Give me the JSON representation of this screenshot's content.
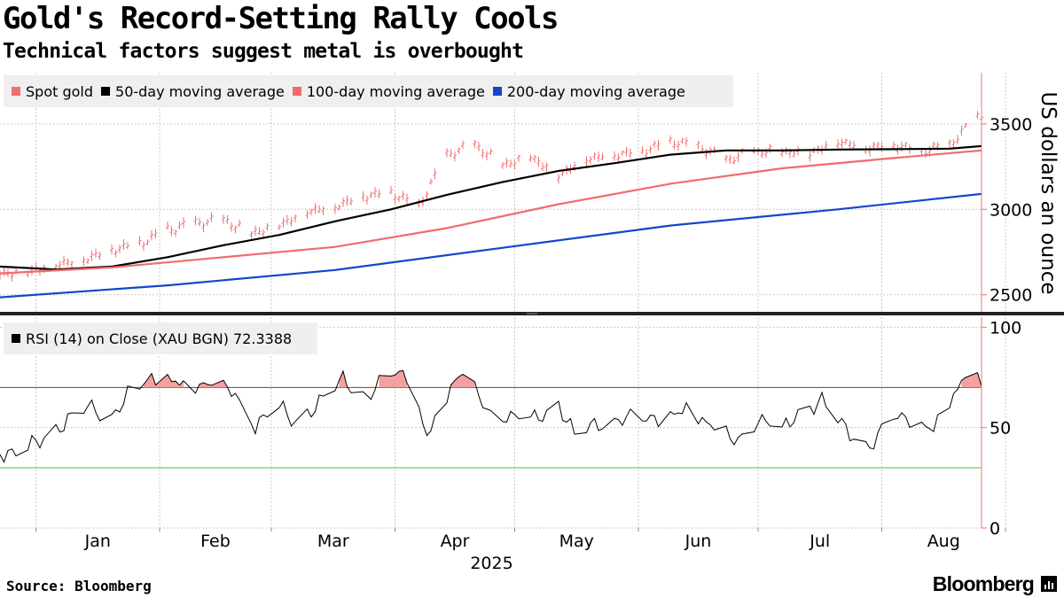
{
  "header": {
    "title": "Gold's Record-Setting Rally Cools",
    "subtitle": "Technical factors suggest metal is overbought"
  },
  "footer": {
    "source": "Source: Bloomberg",
    "brand": "Bloomberg"
  },
  "colors": {
    "spot_gold": "#f07070",
    "ma50": "#000000",
    "ma100": "#f26b6b",
    "ma200": "#1446c8",
    "rsi_line": "#000000",
    "rsi_overbought_line": "#b22222",
    "rsi_oversold_line": "#2ecc40",
    "rsi_fill": "#f4a0a0",
    "grid": "#c8c8c8",
    "axis": "#f07070"
  },
  "chart_data": [
    {
      "type": "line",
      "panel": "price",
      "ylabel": "US dollars an ounce",
      "ylim": [
        2400,
        3800
      ],
      "yticks": [
        2500,
        3000,
        3500
      ],
      "x_start": "2024-12-23",
      "x_end": "2025-08-26",
      "x_ticks": [
        "Jan",
        "Feb",
        "Mar",
        "Apr",
        "May",
        "Jun",
        "Jul",
        "Aug"
      ],
      "x_year_label": "2025",
      "legend_position": "top-left",
      "grid": true,
      "series": [
        {
          "name": "Spot gold",
          "style": "ohlc-bars",
          "dates": [
            "2024-12-23",
            "2024-12-30",
            "2025-01-06",
            "2025-01-13",
            "2025-01-20",
            "2025-01-27",
            "2025-02-03",
            "2025-02-10",
            "2025-02-17",
            "2025-02-24",
            "2025-03-03",
            "2025-03-10",
            "2025-03-17",
            "2025-03-24",
            "2025-03-31",
            "2025-04-07",
            "2025-04-14",
            "2025-04-21",
            "2025-04-28",
            "2025-05-05",
            "2025-05-12",
            "2025-05-19",
            "2025-05-26",
            "2025-06-02",
            "2025-06-09",
            "2025-06-16",
            "2025-06-23",
            "2025-06-30",
            "2025-07-07",
            "2025-07-14",
            "2025-07-21",
            "2025-07-28",
            "2025-08-04",
            "2025-08-11",
            "2025-08-18",
            "2025-08-25"
          ],
          "values": [
            2625,
            2640,
            2680,
            2710,
            2765,
            2800,
            2880,
            2920,
            2940,
            2860,
            2910,
            2990,
            3020,
            3080,
            3100,
            3020,
            3320,
            3380,
            3260,
            3310,
            3200,
            3300,
            3320,
            3340,
            3400,
            3370,
            3290,
            3340,
            3340,
            3330,
            3400,
            3360,
            3380,
            3340,
            3380,
            3540
          ]
        },
        {
          "name": "50-day moving average",
          "dates": [
            "2024-12-23",
            "2025-01-06",
            "2025-01-20",
            "2025-02-03",
            "2025-02-17",
            "2025-03-03",
            "2025-03-17",
            "2025-03-31",
            "2025-04-14",
            "2025-04-28",
            "2025-05-12",
            "2025-05-26",
            "2025-06-09",
            "2025-06-23",
            "2025-07-07",
            "2025-07-21",
            "2025-08-04",
            "2025-08-18",
            "2025-08-26"
          ],
          "values": [
            2665,
            2648,
            2665,
            2720,
            2790,
            2850,
            2930,
            3000,
            3085,
            3160,
            3225,
            3270,
            3320,
            3345,
            3345,
            3350,
            3352,
            3355,
            3370
          ]
        },
        {
          "name": "100-day moving average",
          "dates": [
            "2024-12-23",
            "2025-01-20",
            "2025-02-17",
            "2025-03-17",
            "2025-04-14",
            "2025-05-12",
            "2025-06-09",
            "2025-07-07",
            "2025-08-04",
            "2025-08-26"
          ],
          "values": [
            2625,
            2660,
            2720,
            2780,
            2890,
            3030,
            3150,
            3240,
            3300,
            3345
          ]
        },
        {
          "name": "200-day moving average",
          "dates": [
            "2024-12-23",
            "2025-02-03",
            "2025-03-17",
            "2025-04-28",
            "2025-06-09",
            "2025-07-21",
            "2025-08-26"
          ],
          "values": [
            2485,
            2555,
            2645,
            2775,
            2905,
            3000,
            3090
          ]
        }
      ]
    },
    {
      "type": "line",
      "panel": "rsi",
      "legend_label": "RSI (14)  on Close (XAU BGN) 72.3388",
      "ylim": [
        0,
        105
      ],
      "yticks": [
        0,
        50,
        100
      ],
      "overbought": 70,
      "oversold": 30,
      "grid": true,
      "series": [
        {
          "name": "RSI (14)  on Close (XAU BGN) 72.3388",
          "dates": [
            "2024-12-23",
            "2024-12-27",
            "2025-01-02",
            "2025-01-08",
            "2025-01-14",
            "2025-01-20",
            "2025-01-24",
            "2025-01-30",
            "2025-02-05",
            "2025-02-11",
            "2025-02-14",
            "2025-02-20",
            "2025-02-25",
            "2025-03-03",
            "2025-03-07",
            "2025-03-13",
            "2025-03-19",
            "2025-03-25",
            "2025-03-31",
            "2025-04-04",
            "2025-04-09",
            "2025-04-15",
            "2025-04-18",
            "2025-04-24",
            "2025-04-30",
            "2025-05-06",
            "2025-05-12",
            "2025-05-16",
            "2025-05-22",
            "2025-05-28",
            "2025-06-03",
            "2025-06-09",
            "2025-06-13",
            "2025-06-19",
            "2025-06-25",
            "2025-07-01",
            "2025-07-07",
            "2025-07-11",
            "2025-07-17",
            "2025-07-23",
            "2025-07-29",
            "2025-08-04",
            "2025-08-08",
            "2025-08-14",
            "2025-08-20",
            "2025-08-22",
            "2025-08-26"
          ],
          "values": [
            38,
            36,
            44,
            52,
            60,
            56,
            66,
            74,
            74,
            71,
            70,
            68,
            51,
            60,
            53,
            62,
            74,
            66,
            76,
            76,
            47,
            70,
            76,
            60,
            55,
            54,
            62,
            46,
            52,
            55,
            53,
            57,
            60,
            50,
            44,
            54,
            48,
            58,
            63,
            49,
            41,
            54,
            55,
            50,
            68,
            76,
            72
          ]
        }
      ]
    }
  ]
}
